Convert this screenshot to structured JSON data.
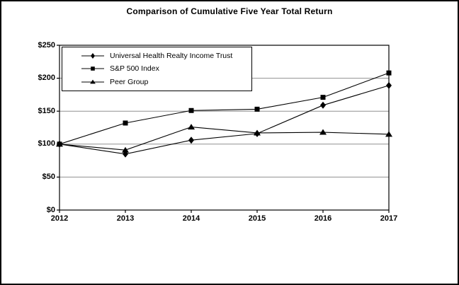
{
  "window": {
    "background": "#ffffff",
    "border_color": "#000000"
  },
  "chart_data": {
    "type": "line",
    "title": "Comparison of Cumulative Five Year Total Return",
    "categories": [
      "2012",
      "2013",
      "2014",
      "2015",
      "2016",
      "2017"
    ],
    "series": [
      {
        "name": "Universal Health Realty Income Trust",
        "marker": "diamond",
        "color": "#000000",
        "values": [
          100,
          85,
          106,
          116,
          159,
          189
        ]
      },
      {
        "name": "S&P 500 Index",
        "marker": "square",
        "color": "#000000",
        "values": [
          100,
          132,
          151,
          153,
          171,
          208
        ]
      },
      {
        "name": "Peer Group",
        "marker": "triangle",
        "color": "#000000",
        "values": [
          100,
          91,
          126,
          117,
          118,
          115
        ]
      }
    ],
    "xlabel": "",
    "ylabel": "",
    "ylim": [
      0,
      250
    ],
    "ytick_interval": 50,
    "yticks": [
      {
        "value": 0,
        "label": "$0"
      },
      {
        "value": 50,
        "label": "$50"
      },
      {
        "value": 100,
        "label": "$100"
      },
      {
        "value": 150,
        "label": "$150"
      },
      {
        "value": 200,
        "label": "$200"
      },
      {
        "value": 250,
        "label": "$250"
      }
    ],
    "grid": true,
    "gridline_color": "#909090",
    "axis_color": "#000000",
    "legend_position": "top-left"
  }
}
